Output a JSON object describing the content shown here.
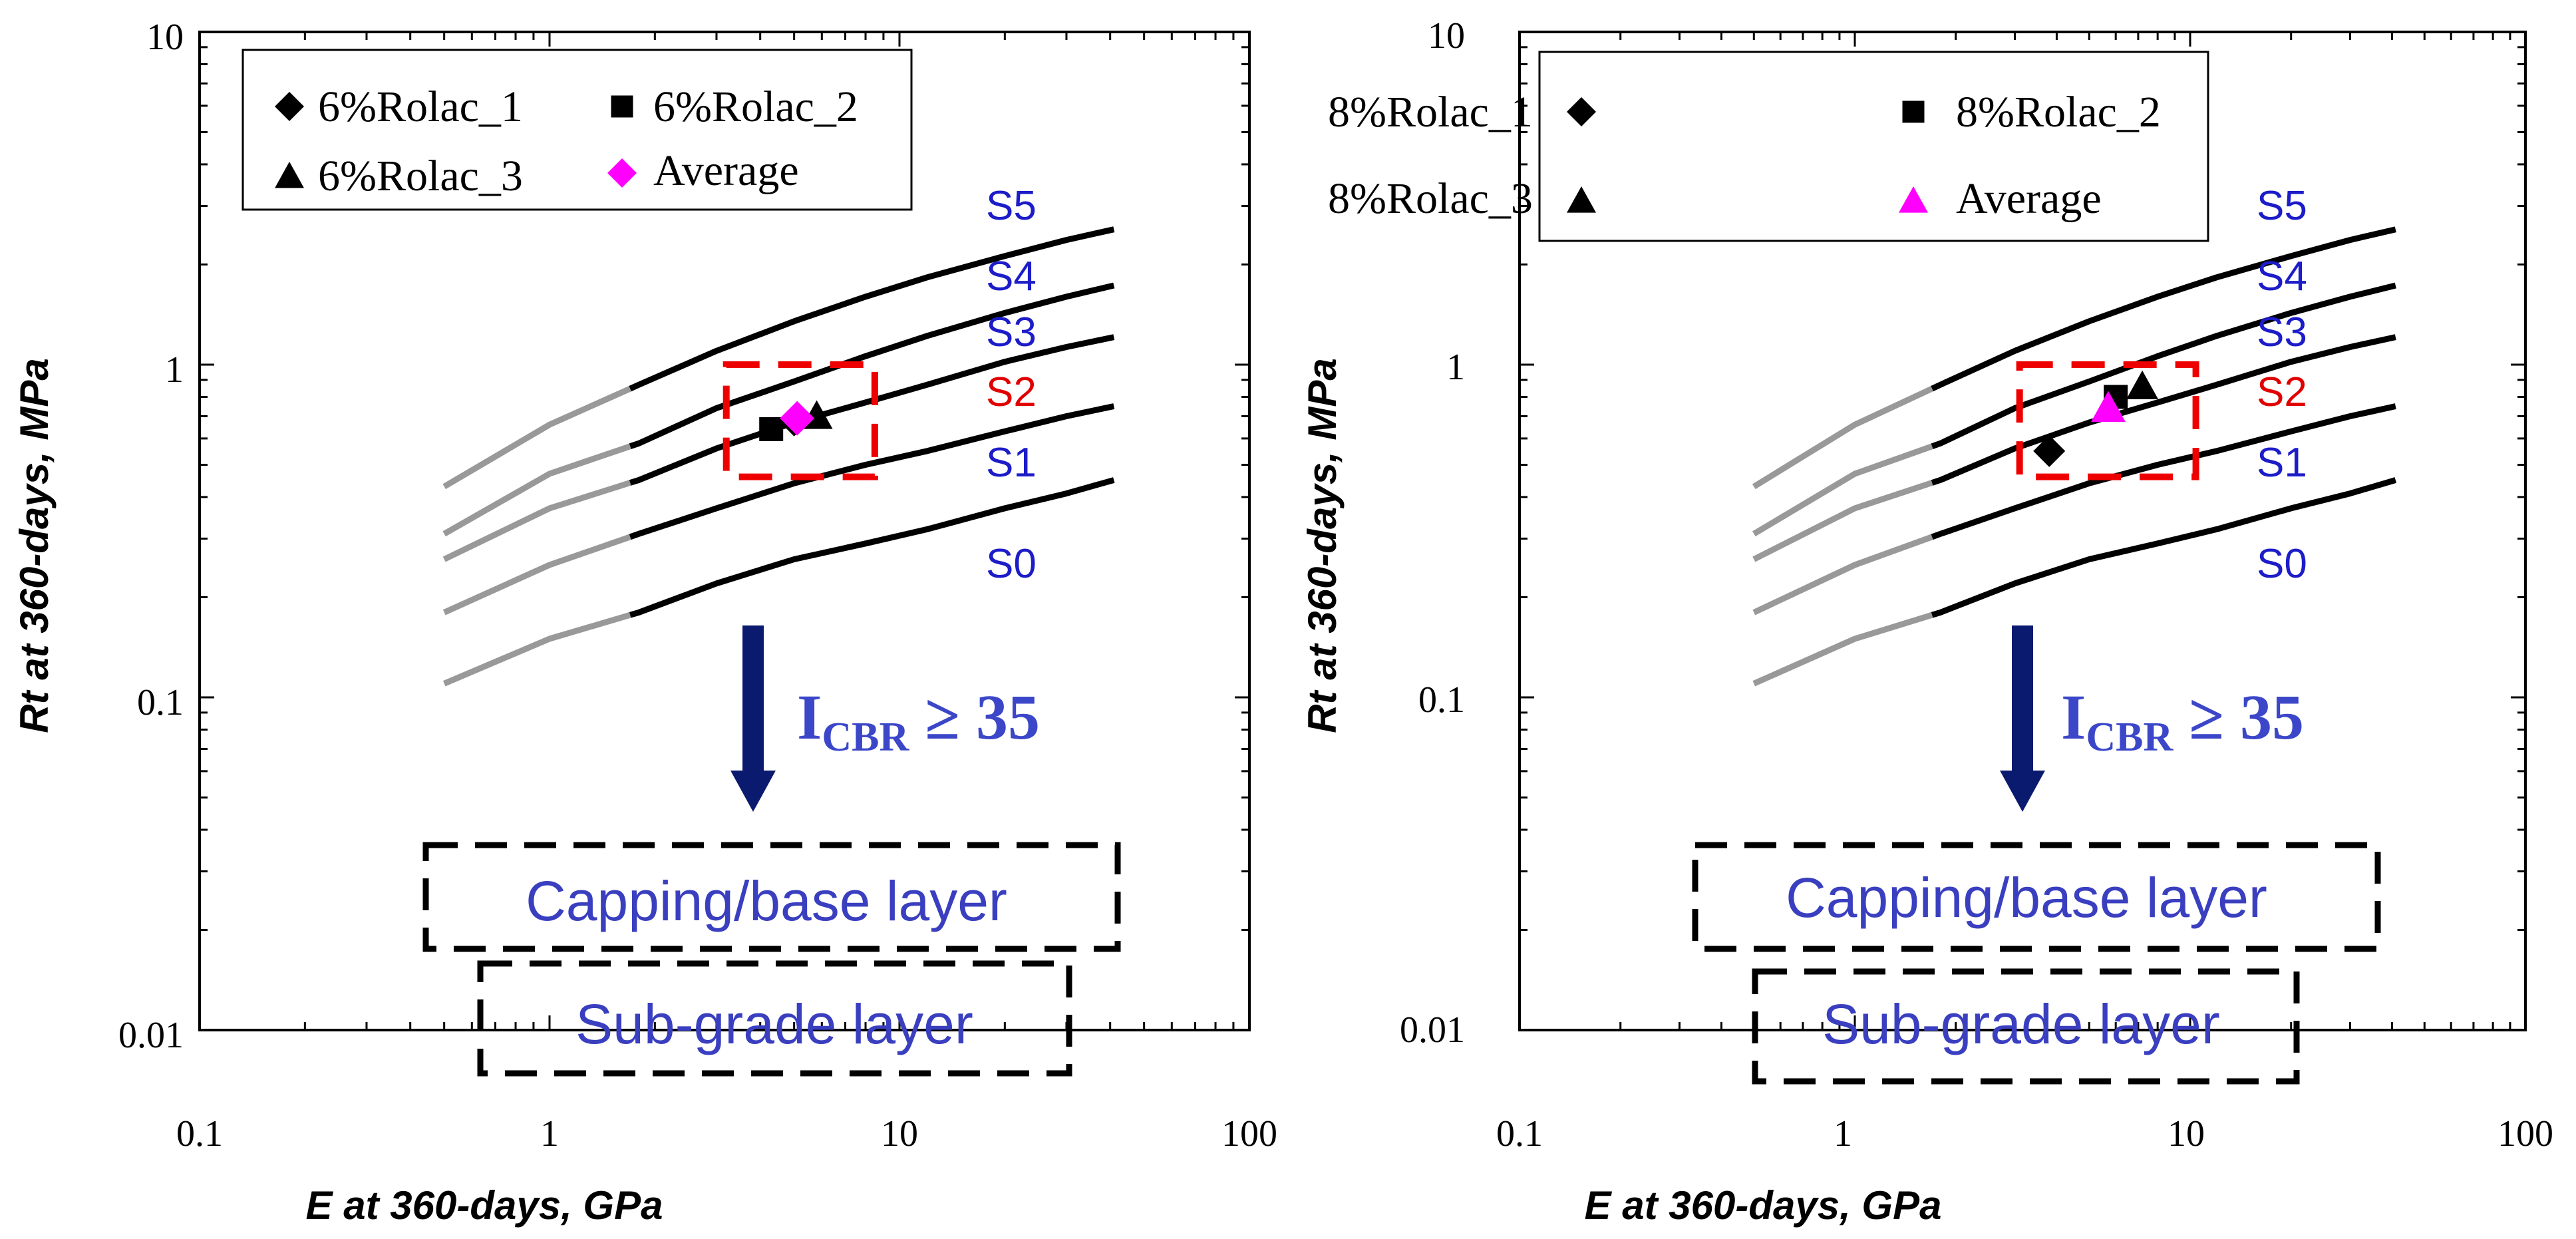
{
  "chart_data": [
    {
      "type": "scatter",
      "xscale": "log",
      "yscale": "log",
      "xlim": [
        0.1,
        100
      ],
      "ylim": [
        0.01,
        10
      ],
      "xticks": [
        "0.1",
        "1",
        "10",
        "100"
      ],
      "yticks": [
        "0.01",
        "0.1",
        "1",
        "10"
      ],
      "xlabel": "E at 360-days, GPa",
      "ylabel": "Rt at 360-days, MPa",
      "legend": [
        {
          "label": "6%Rolac_1",
          "marker": "diamond",
          "color": "#000000"
        },
        {
          "label": "6%Rolac_2",
          "marker": "square",
          "color": "#000000"
        },
        {
          "label": "6%Rolac_3",
          "marker": "triangle",
          "color": "#000000"
        },
        {
          "label": "Average",
          "marker": "diamond",
          "color": "#ff00ff"
        }
      ],
      "series": [
        {
          "name": "6%Rolac_1",
          "marker": "diamond",
          "color": "#000000",
          "points": [
            [
              5.0,
              0.68
            ]
          ]
        },
        {
          "name": "6%Rolac_2",
          "marker": "square",
          "color": "#000000",
          "points": [
            [
              4.3,
              0.64
            ]
          ]
        },
        {
          "name": "6%Rolac_3",
          "marker": "triangle",
          "color": "#000000",
          "points": [
            [
              5.8,
              0.7
            ]
          ]
        },
        {
          "name": "Average",
          "marker": "diamond",
          "color": "#ff00ff",
          "points": [
            [
              5.1,
              0.69
            ]
          ]
        }
      ],
      "boundaries": [
        {
          "name": "S0/S1",
          "points": [
            [
              0.5,
              0.11
            ],
            [
              1,
              0.15
            ],
            [
              1.8,
              0.18
            ],
            [
              3,
              0.22
            ],
            [
              5,
              0.26
            ],
            [
              8,
              0.29
            ],
            [
              12,
              0.32
            ],
            [
              20,
              0.37
            ],
            [
              30,
              0.41
            ],
            [
              41,
              0.45
            ]
          ]
        },
        {
          "name": "S1/S2",
          "points": [
            [
              0.5,
              0.18
            ],
            [
              1,
              0.25
            ],
            [
              1.8,
              0.31
            ],
            [
              3,
              0.37
            ],
            [
              5,
              0.44
            ],
            [
              8,
              0.5
            ],
            [
              12,
              0.55
            ],
            [
              20,
              0.63
            ],
            [
              30,
              0.7
            ],
            [
              41,
              0.75
            ]
          ]
        },
        {
          "name": "S2/S3",
          "points": [
            [
              0.5,
              0.26
            ],
            [
              1,
              0.37
            ],
            [
              1.8,
              0.45
            ],
            [
              3,
              0.56
            ],
            [
              5,
              0.67
            ],
            [
              8,
              0.77
            ],
            [
              12,
              0.87
            ],
            [
              20,
              1.02
            ],
            [
              30,
              1.13
            ],
            [
              41,
              1.21
            ]
          ]
        },
        {
          "name": "S3/S4",
          "points": [
            [
              0.5,
              0.31
            ],
            [
              1,
              0.47
            ],
            [
              1.8,
              0.58
            ],
            [
              3,
              0.74
            ],
            [
              5,
              0.89
            ],
            [
              8,
              1.06
            ],
            [
              12,
              1.22
            ],
            [
              20,
              1.43
            ],
            [
              30,
              1.6
            ],
            [
              41,
              1.73
            ]
          ]
        },
        {
          "name": "S4/S5",
          "points": [
            [
              0.5,
              0.43
            ],
            [
              1,
              0.66
            ],
            [
              1.8,
              0.87
            ],
            [
              3,
              1.1
            ],
            [
              5,
              1.35
            ],
            [
              8,
              1.6
            ],
            [
              12,
              1.83
            ],
            [
              20,
              2.12
            ],
            [
              30,
              2.37
            ],
            [
              41,
              2.55
            ]
          ]
        }
      ],
      "class_labels": [
        {
          "text": "S5",
          "color": "#1c1cc8"
        },
        {
          "text": "S4",
          "color": "#1c1cc8"
        },
        {
          "text": "S3",
          "color": "#1c1cc8"
        },
        {
          "text": "S2",
          "color": "#e00000"
        },
        {
          "text": "S1",
          "color": "#1c1cc8"
        },
        {
          "text": "S0",
          "color": "#1c1cc8"
        }
      ],
      "highlight_box": {
        "x": [
          3.2,
          8.5
        ],
        "y": [
          0.46,
          1.0
        ]
      },
      "annotation_main": "I",
      "annotation_sub": "CBR",
      "annotation_rest": " ≥ 35",
      "layers": [
        "Capping/base layer",
        "Sub-grade layer"
      ]
    },
    {
      "type": "scatter",
      "xscale": "log",
      "yscale": "log",
      "xlim": [
        0.1,
        100
      ],
      "ylim": [
        0.01,
        10
      ],
      "xticks": [
        "0.1",
        "1",
        "10",
        "100"
      ],
      "yticks": [
        "0.01",
        "0.1",
        "1",
        "10"
      ],
      "xlabel": "E at 360-days, GPa",
      "ylabel": "Rt at 360-days, MPa",
      "legend": [
        {
          "label": "8%Rolac_1",
          "marker": "diamond",
          "color": "#000000"
        },
        {
          "label": "8%Rolac_2",
          "marker": "square",
          "color": "#000000"
        },
        {
          "label": "8%Rolac_3",
          "marker": "triangle",
          "color": "#000000"
        },
        {
          "label": "Average",
          "marker": "triangle",
          "color": "#ff00ff"
        }
      ],
      "series": [
        {
          "name": "8%Rolac_1",
          "marker": "diamond",
          "color": "#000000",
          "points": [
            [
              3.8,
              0.55
            ]
          ]
        },
        {
          "name": "8%Rolac_2",
          "marker": "square",
          "color": "#000000",
          "points": [
            [
              6.0,
              0.8
            ]
          ]
        },
        {
          "name": "8%Rolac_3",
          "marker": "triangle",
          "color": "#000000",
          "points": [
            [
              7.2,
              0.86
            ]
          ]
        },
        {
          "name": "Average",
          "marker": "triangle",
          "color": "#ff00ff",
          "points": [
            [
              5.7,
              0.74
            ]
          ]
        }
      ],
      "boundaries": [
        {
          "name": "S0/S1",
          "points": [
            [
              0.5,
              0.11
            ],
            [
              1,
              0.15
            ],
            [
              1.8,
              0.18
            ],
            [
              3,
              0.22
            ],
            [
              5,
              0.26
            ],
            [
              8,
              0.29
            ],
            [
              12,
              0.32
            ],
            [
              20,
              0.37
            ],
            [
              30,
              0.41
            ],
            [
              41,
              0.45
            ]
          ]
        },
        {
          "name": "S1/S2",
          "points": [
            [
              0.5,
              0.18
            ],
            [
              1,
              0.25
            ],
            [
              1.8,
              0.31
            ],
            [
              3,
              0.37
            ],
            [
              5,
              0.44
            ],
            [
              8,
              0.5
            ],
            [
              12,
              0.55
            ],
            [
              20,
              0.63
            ],
            [
              30,
              0.7
            ],
            [
              41,
              0.75
            ]
          ]
        },
        {
          "name": "S2/S3",
          "points": [
            [
              0.5,
              0.26
            ],
            [
              1,
              0.37
            ],
            [
              1.8,
              0.45
            ],
            [
              3,
              0.56
            ],
            [
              5,
              0.67
            ],
            [
              8,
              0.77
            ],
            [
              12,
              0.87
            ],
            [
              20,
              1.02
            ],
            [
              30,
              1.13
            ],
            [
              41,
              1.21
            ]
          ]
        },
        {
          "name": "S3/S4",
          "points": [
            [
              0.5,
              0.31
            ],
            [
              1,
              0.47
            ],
            [
              1.8,
              0.58
            ],
            [
              3,
              0.74
            ],
            [
              5,
              0.89
            ],
            [
              8,
              1.06
            ],
            [
              12,
              1.22
            ],
            [
              20,
              1.43
            ],
            [
              30,
              1.6
            ],
            [
              41,
              1.73
            ]
          ]
        },
        {
          "name": "S4/S5",
          "points": [
            [
              0.5,
              0.43
            ],
            [
              1,
              0.66
            ],
            [
              1.8,
              0.87
            ],
            [
              3,
              1.1
            ],
            [
              5,
              1.35
            ],
            [
              8,
              1.6
            ],
            [
              12,
              1.83
            ],
            [
              20,
              2.12
            ],
            [
              30,
              2.37
            ],
            [
              41,
              2.55
            ]
          ]
        }
      ],
      "class_labels": [
        {
          "text": "S5",
          "color": "#1c1cc8"
        },
        {
          "text": "S4",
          "color": "#1c1cc8"
        },
        {
          "text": "S3",
          "color": "#1c1cc8"
        },
        {
          "text": "S2",
          "color": "#e00000"
        },
        {
          "text": "S1",
          "color": "#1c1cc8"
        },
        {
          "text": "S0",
          "color": "#1c1cc8"
        }
      ],
      "highlight_box": {
        "x": [
          3.1,
          10.4
        ],
        "y": [
          0.46,
          1.0
        ]
      },
      "annotation_main": "I",
      "annotation_sub": "CBR",
      "annotation_rest": " ≥ 35",
      "layers": [
        "Capping/base layer",
        "Sub-grade layer"
      ]
    }
  ],
  "colors": {
    "axis": "#000000",
    "curve_dark": "#000000",
    "curve_light": "#999999",
    "highlight": "#ee0000",
    "arrow": "#0a1a6e",
    "average_marker": "#ff00ff"
  }
}
